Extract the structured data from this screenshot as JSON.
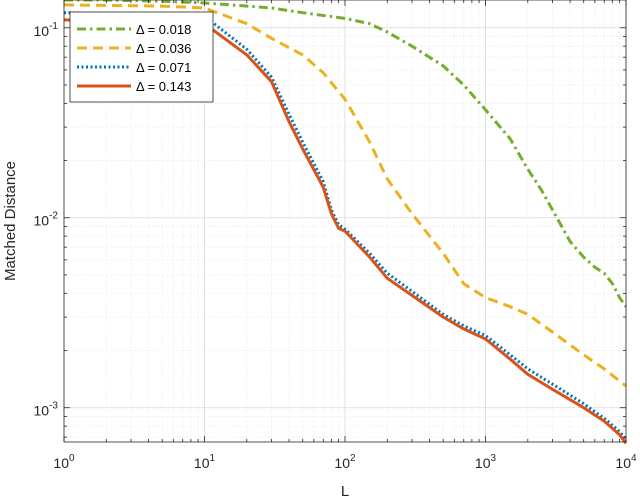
{
  "chart_data": {
    "type": "line",
    "xlabel": "L",
    "ylabel": "Matched Distance",
    "xscale": "log",
    "yscale": "log",
    "xlim": [
      1,
      10000
    ],
    "ylim": [
      0.00066,
      0.14
    ],
    "grid": "on (major and minor)",
    "legend_position": "top-left",
    "x_ticks": [
      {
        "base": "10",
        "exp": "0",
        "value": 1
      },
      {
        "base": "10",
        "exp": "1",
        "value": 10
      },
      {
        "base": "10",
        "exp": "2",
        "value": 100
      },
      {
        "base": "10",
        "exp": "3",
        "value": 1000
      },
      {
        "base": "10",
        "exp": "4",
        "value": 10000
      }
    ],
    "y_ticks": [
      {
        "base": "10",
        "exp": "-3",
        "value": 0.001
      },
      {
        "base": "10",
        "exp": "-2",
        "value": 0.01
      },
      {
        "base": "10",
        "exp": "-1",
        "value": 0.1
      }
    ],
    "series": [
      {
        "name": "Δ = 0.018",
        "color": "#77AC30",
        "style": "dashdot",
        "points": [
          [
            1,
            0.14
          ],
          [
            2,
            0.14
          ],
          [
            5,
            0.138
          ],
          [
            10,
            0.135
          ],
          [
            20,
            0.13
          ],
          [
            30,
            0.127
          ],
          [
            50,
            0.12
          ],
          [
            100,
            0.112
          ],
          [
            150,
            0.105
          ],
          [
            200,
            0.095
          ],
          [
            300,
            0.08
          ],
          [
            500,
            0.063
          ],
          [
            700,
            0.05
          ],
          [
            1000,
            0.037
          ],
          [
            1500,
            0.026
          ],
          [
            2000,
            0.018
          ],
          [
            2500,
            0.014
          ],
          [
            3000,
            0.011
          ],
          [
            4000,
            0.0075
          ],
          [
            5000,
            0.0062
          ],
          [
            6000,
            0.0055
          ],
          [
            7000,
            0.0051
          ],
          [
            8000,
            0.0045
          ],
          [
            9000,
            0.0038
          ],
          [
            10000,
            0.0034
          ]
        ]
      },
      {
        "name": "Δ = 0.036",
        "color": "#EDB120",
        "style": "dashed",
        "points": [
          [
            1,
            0.132
          ],
          [
            5,
            0.13
          ],
          [
            10,
            0.127
          ],
          [
            20,
            0.105
          ],
          [
            30,
            0.088
          ],
          [
            50,
            0.072
          ],
          [
            70,
            0.058
          ],
          [
            100,
            0.042
          ],
          [
            150,
            0.025
          ],
          [
            200,
            0.016
          ],
          [
            300,
            0.0105
          ],
          [
            500,
            0.0065
          ],
          [
            700,
            0.0045
          ],
          [
            1000,
            0.0038
          ],
          [
            1500,
            0.0034
          ],
          [
            2000,
            0.0031
          ],
          [
            3000,
            0.0025
          ],
          [
            5000,
            0.0019
          ],
          [
            7000,
            0.0016
          ],
          [
            10000,
            0.0013
          ]
        ]
      },
      {
        "name": "Δ = 0.071",
        "color": "#0072BD",
        "style": "dotted",
        "points": [
          [
            1,
            0.12
          ],
          [
            5,
            0.118
          ],
          [
            10,
            0.115
          ],
          [
            20,
            0.077
          ],
          [
            30,
            0.055
          ],
          [
            40,
            0.035
          ],
          [
            50,
            0.025
          ],
          [
            70,
            0.0155
          ],
          [
            80,
            0.011
          ],
          [
            90,
            0.0092
          ],
          [
            100,
            0.0087
          ],
          [
            150,
            0.0065
          ],
          [
            200,
            0.0051
          ],
          [
            300,
            0.0041
          ],
          [
            500,
            0.0031
          ],
          [
            700,
            0.0027
          ],
          [
            1000,
            0.0024
          ],
          [
            1500,
            0.0019
          ],
          [
            2000,
            0.0016
          ],
          [
            3000,
            0.00133
          ],
          [
            5000,
            0.00105
          ],
          [
            7000,
            0.00088
          ],
          [
            9000,
            0.00075
          ],
          [
            10000,
            0.00068
          ]
        ]
      },
      {
        "name": "Δ = 0.143",
        "color": "#D95319",
        "style": "solid",
        "points": [
          [
            1,
            0.11
          ],
          [
            5,
            0.107
          ],
          [
            10,
            0.105
          ],
          [
            20,
            0.072
          ],
          [
            30,
            0.052
          ],
          [
            40,
            0.032
          ],
          [
            50,
            0.023
          ],
          [
            70,
            0.0145
          ],
          [
            80,
            0.0105
          ],
          [
            90,
            0.0088
          ],
          [
            100,
            0.0085
          ],
          [
            150,
            0.0062
          ],
          [
            200,
            0.0048
          ],
          [
            300,
            0.0039
          ],
          [
            500,
            0.003
          ],
          [
            700,
            0.0026
          ],
          [
            1000,
            0.0023
          ],
          [
            1500,
            0.0018
          ],
          [
            2000,
            0.0015
          ],
          [
            3000,
            0.00125
          ],
          [
            5000,
            0.001
          ],
          [
            7000,
            0.00085
          ],
          [
            9000,
            0.00072
          ],
          [
            10000,
            0.00065
          ]
        ]
      }
    ]
  }
}
